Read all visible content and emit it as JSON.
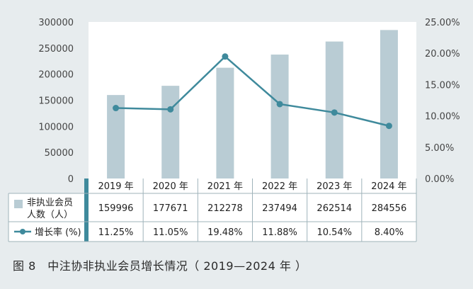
{
  "chart_data": {
    "type": "bar",
    "categories": [
      "2019 年",
      "2020 年",
      "2021 年",
      "2022 年",
      "2023 年",
      "2024 年"
    ],
    "series": [
      {
        "name": "非执业会员人数（人）",
        "type": "bar",
        "axis": "left",
        "values": [
          159996,
          177671,
          212278,
          237494,
          262514,
          284556
        ],
        "value_labels": [
          "159996",
          "177671",
          "212278",
          "237494",
          "262514",
          "284556"
        ],
        "color": "#b9ccd4"
      },
      {
        "name": "增长率 (%)",
        "type": "line",
        "axis": "right",
        "values": [
          11.25,
          11.05,
          19.48,
          11.88,
          10.54,
          8.4
        ],
        "value_labels": [
          "11.25%",
          "11.05%",
          "19.48%",
          "11.88%",
          "10.54%",
          "8.40%"
        ],
        "color": "#3f8a9c"
      }
    ],
    "ylim_left": [
      0,
      300000
    ],
    "yticks_left": [
      "0",
      "50000",
      "100000",
      "150000",
      "200000",
      "250000",
      "300000"
    ],
    "ylim_right": [
      0,
      25
    ],
    "yticks_right": [
      "0.00%",
      "5.00%",
      "10.00%",
      "15.00%",
      "20.00%",
      "25.00%"
    ],
    "table_header_lines": [
      "非执业会员",
      "人数（人）"
    ],
    "grid": false,
    "legend": "data-table-below"
  },
  "caption": "图 8　中注协非执业会员增长情况（ 2019—2024 年 ）"
}
